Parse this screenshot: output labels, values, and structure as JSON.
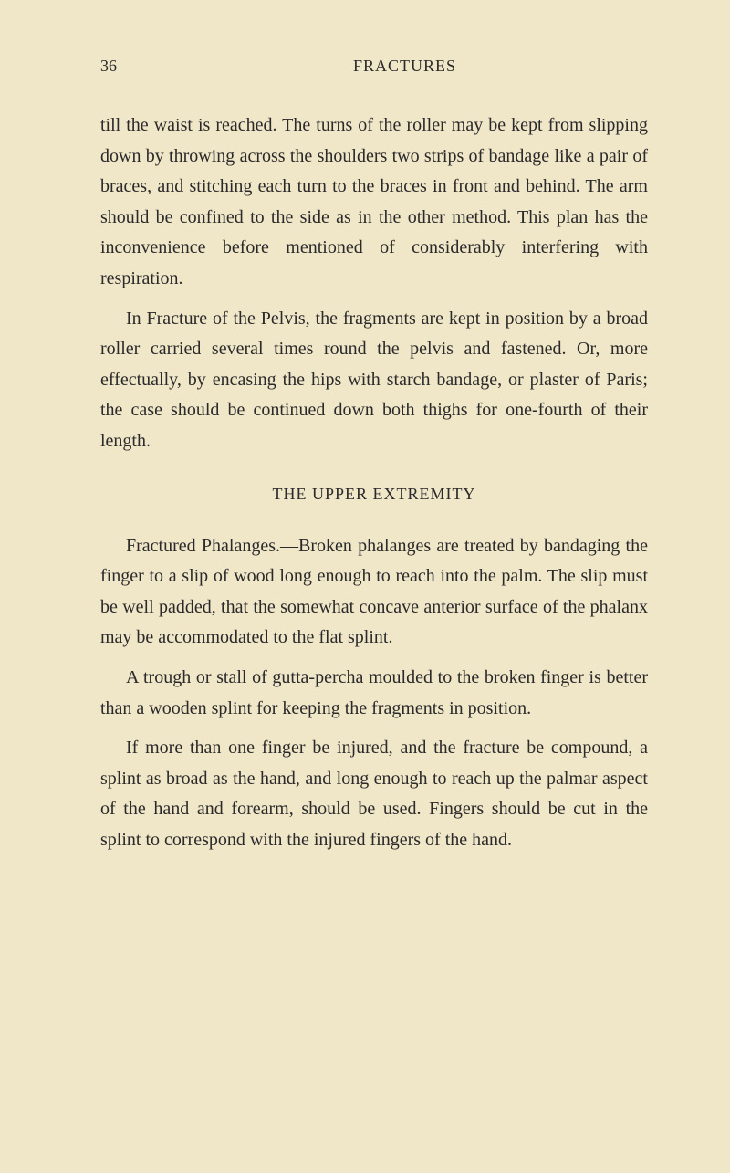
{
  "header": {
    "pageNumber": "36",
    "runningTitle": "FRACTURES"
  },
  "body": {
    "para1": "till the waist is reached. The turns of the roller may be kept from slipping down by throwing across the shoulders two strips of bandage like a pair of braces, and stitching each turn to the braces in front and behind. The arm should be confined to the side as in the other method. This plan has the inconvenience before mentioned of considerably interfering with respiration.",
    "para2_label": "In Fracture of the Pelvis,",
    "para2_text": " the fragments are kept in position by a broad roller carried several times round the pelvis and fastened. Or, more effectually, by encasing the hips with starch bandage, or plaster of Paris; the case should be continued down both thighs for one-fourth of their length.",
    "sectionHeading": "THE UPPER EXTREMITY",
    "para3_label": "Fractured Phalanges.",
    "para3_text": "—Broken phalanges are treated by bandaging the finger to a slip of wood long enough to reach into the palm. The slip must be well padded, that the somewhat concave anterior surface of the phalanx may be accommodated to the flat splint.",
    "para4": "A trough or stall of gutta-percha moulded to the broken finger is better than a wooden splint for keeping the fragments in position.",
    "para5": "If more than one finger be injured, and the fracture be compound, a splint as broad as the hand, and long enough to reach up the palmar aspect of the hand and forearm, should be used. Fingers should be cut in the splint to correspond with the injured fingers of the hand."
  },
  "styling": {
    "backgroundColor": "#f0e6c8",
    "textColor": "#2a2a2a",
    "bodyFontSize": 20,
    "headerFontSize": 18,
    "lineHeight": 1.68,
    "pageWidth": 800,
    "pageHeight": 1285,
    "fontFamily": "Georgia, Times New Roman, serif"
  }
}
